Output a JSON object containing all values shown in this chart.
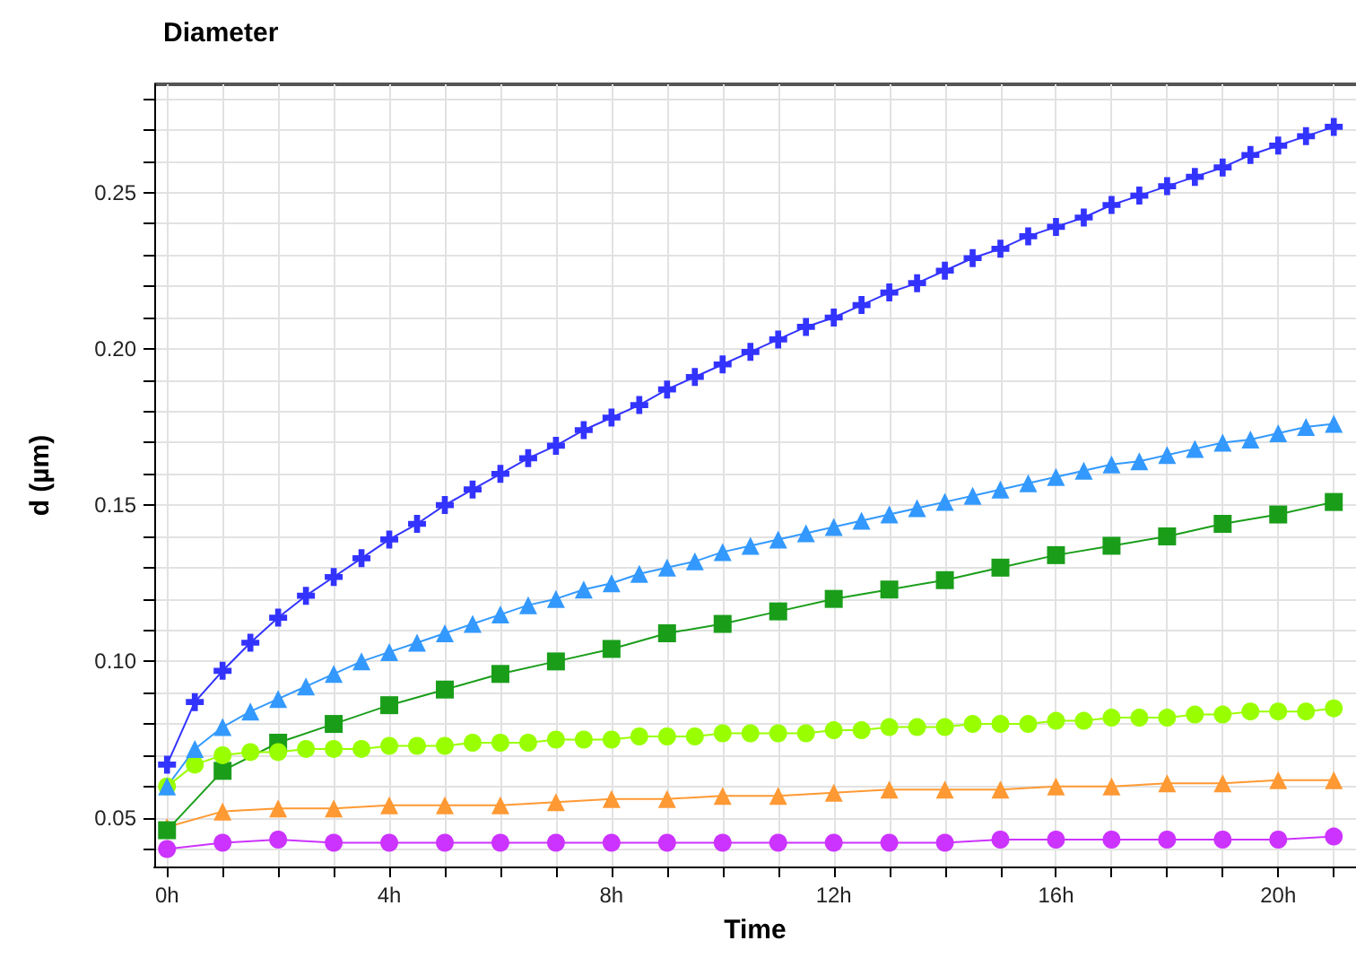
{
  "chart_data": {
    "type": "line",
    "title": "Diameter",
    "xlabel": "Time",
    "ylabel": "d (µm)",
    "xlim": [
      -0.23,
      21.4
    ],
    "ylim": [
      0.0344,
      0.2846
    ],
    "xticks": [
      {
        "value": 0,
        "label": "0h"
      },
      {
        "value": 1,
        "label": null
      },
      {
        "value": 2,
        "label": null
      },
      {
        "value": 3,
        "label": null
      },
      {
        "value": 4,
        "label": "4h"
      },
      {
        "value": 5,
        "label": null
      },
      {
        "value": 6,
        "label": null
      },
      {
        "value": 7,
        "label": null
      },
      {
        "value": 8,
        "label": "8h"
      },
      {
        "value": 9,
        "label": null
      },
      {
        "value": 10,
        "label": null
      },
      {
        "value": 11,
        "label": null
      },
      {
        "value": 12,
        "label": "12h"
      },
      {
        "value": 13,
        "label": null
      },
      {
        "value": 14,
        "label": null
      },
      {
        "value": 15,
        "label": null
      },
      {
        "value": 16,
        "label": "16h"
      },
      {
        "value": 17,
        "label": null
      },
      {
        "value": 18,
        "label": null
      },
      {
        "value": 19,
        "label": null
      },
      {
        "value": 20,
        "label": "20h"
      },
      {
        "value": 21,
        "label": null
      }
    ],
    "yticks": [
      {
        "value": 0.04,
        "label": null
      },
      {
        "value": 0.05,
        "label": "0.05"
      },
      {
        "value": 0.06,
        "label": null
      },
      {
        "value": 0.07,
        "label": null
      },
      {
        "value": 0.08,
        "label": null
      },
      {
        "value": 0.09,
        "label": null
      },
      {
        "value": 0.1,
        "label": "0.10"
      },
      {
        "value": 0.11,
        "label": null
      },
      {
        "value": 0.12,
        "label": null
      },
      {
        "value": 0.13,
        "label": null
      },
      {
        "value": 0.14,
        "label": null
      },
      {
        "value": 0.15,
        "label": "0.15"
      },
      {
        "value": 0.16,
        "label": null
      },
      {
        "value": 0.17,
        "label": null
      },
      {
        "value": 0.18,
        "label": null
      },
      {
        "value": 0.19,
        "label": null
      },
      {
        "value": 0.2,
        "label": "0.20"
      },
      {
        "value": 0.21,
        "label": null
      },
      {
        "value": 0.22,
        "label": null
      },
      {
        "value": 0.23,
        "label": null
      },
      {
        "value": 0.24,
        "label": null
      },
      {
        "value": 0.25,
        "label": "0.25"
      },
      {
        "value": 0.26,
        "label": null
      },
      {
        "value": 0.27,
        "label": null
      },
      {
        "value": 0.28,
        "label": null
      }
    ],
    "grid": true,
    "line_style": "solid",
    "series": [
      {
        "color": "#ff9933",
        "marker": "triangle",
        "x": [
          0,
          1,
          2,
          3,
          4,
          5,
          6,
          7,
          8,
          9,
          10,
          11,
          12,
          13,
          14,
          15,
          16,
          17,
          18,
          19,
          20,
          21
        ],
        "values": [
          0.047,
          0.052,
          0.053,
          0.053,
          0.054,
          0.054,
          0.054,
          0.055,
          0.056,
          0.056,
          0.057,
          0.057,
          0.058,
          0.059,
          0.059,
          0.059,
          0.06,
          0.06,
          0.061,
          0.061,
          0.062,
          0.062
        ]
      },
      {
        "color": "#cc33ff",
        "marker": "circle",
        "x": [
          0,
          1,
          2,
          3,
          4,
          5,
          6,
          7,
          8,
          9,
          10,
          11,
          12,
          13,
          14,
          15,
          16,
          17,
          18,
          19,
          20,
          21
        ],
        "values": [
          0.04,
          0.042,
          0.043,
          0.042,
          0.042,
          0.042,
          0.042,
          0.042,
          0.042,
          0.042,
          0.042,
          0.042,
          0.042,
          0.042,
          0.042,
          0.043,
          0.043,
          0.043,
          0.043,
          0.043,
          0.043,
          0.044
        ]
      },
      {
        "color": "#1a9e1a",
        "marker": "square",
        "x": [
          0,
          1,
          2,
          3,
          4,
          5,
          6,
          7,
          8,
          9,
          10,
          11,
          12,
          13,
          14,
          15,
          16,
          17,
          18,
          19,
          20,
          21
        ],
        "values": [
          0.046,
          0.065,
          0.074,
          0.08,
          0.086,
          0.091,
          0.096,
          0.1,
          0.104,
          0.109,
          0.112,
          0.116,
          0.12,
          0.123,
          0.126,
          0.13,
          0.134,
          0.137,
          0.14,
          0.144,
          0.147,
          0.151
        ]
      },
      {
        "color": "#99ff00",
        "marker": "circle",
        "x": [
          0,
          0.5,
          1,
          1.5,
          2,
          2.5,
          3,
          3.5,
          4,
          4.5,
          5,
          5.5,
          6,
          6.5,
          7,
          7.5,
          8,
          8.5,
          9,
          9.5,
          10,
          10.5,
          11,
          11.5,
          12,
          12.5,
          13,
          13.5,
          14,
          14.5,
          15,
          15.5,
          16,
          16.5,
          17,
          17.5,
          18,
          18.5,
          19,
          19.5,
          20,
          20.5,
          21
        ],
        "values": [
          0.06,
          0.067,
          0.07,
          0.071,
          0.071,
          0.072,
          0.072,
          0.072,
          0.073,
          0.073,
          0.073,
          0.074,
          0.074,
          0.074,
          0.075,
          0.075,
          0.075,
          0.076,
          0.076,
          0.076,
          0.077,
          0.077,
          0.077,
          0.077,
          0.078,
          0.078,
          0.079,
          0.079,
          0.079,
          0.08,
          0.08,
          0.08,
          0.081,
          0.081,
          0.082,
          0.082,
          0.082,
          0.083,
          0.083,
          0.084,
          0.084,
          0.084,
          0.085
        ]
      },
      {
        "color": "#3399ff",
        "marker": "triangle",
        "x": [
          0,
          0.5,
          1,
          1.5,
          2,
          2.5,
          3,
          3.5,
          4,
          4.5,
          5,
          5.5,
          6,
          6.5,
          7,
          7.5,
          8,
          8.5,
          9,
          9.5,
          10,
          10.5,
          11,
          11.5,
          12,
          12.5,
          13,
          13.5,
          14,
          14.5,
          15,
          15.5,
          16,
          16.5,
          17,
          17.5,
          18,
          18.5,
          19,
          19.5,
          20,
          20.5,
          21
        ],
        "values": [
          0.06,
          0.072,
          0.079,
          0.084,
          0.088,
          0.092,
          0.096,
          0.1,
          0.103,
          0.106,
          0.109,
          0.112,
          0.115,
          0.118,
          0.12,
          0.123,
          0.125,
          0.128,
          0.13,
          0.132,
          0.135,
          0.137,
          0.139,
          0.141,
          0.143,
          0.145,
          0.147,
          0.149,
          0.151,
          0.153,
          0.155,
          0.157,
          0.159,
          0.161,
          0.163,
          0.164,
          0.166,
          0.168,
          0.17,
          0.171,
          0.173,
          0.175,
          0.176
        ]
      },
      {
        "color": "#3333ff",
        "marker": "cross",
        "x": [
          0,
          0.5,
          1,
          1.5,
          2,
          2.5,
          3,
          3.5,
          4,
          4.5,
          5,
          5.5,
          6,
          6.5,
          7,
          7.5,
          8,
          8.5,
          9,
          9.5,
          10,
          10.5,
          11,
          11.5,
          12,
          12.5,
          13,
          13.5,
          14,
          14.5,
          15,
          15.5,
          16,
          16.5,
          17,
          17.5,
          18,
          18.5,
          19,
          19.5,
          20,
          20.5,
          21
        ],
        "values": [
          0.067,
          0.087,
          0.097,
          0.106,
          0.114,
          0.121,
          0.127,
          0.133,
          0.139,
          0.144,
          0.15,
          0.155,
          0.16,
          0.165,
          0.169,
          0.174,
          0.178,
          0.182,
          0.187,
          0.191,
          0.195,
          0.199,
          0.203,
          0.207,
          0.21,
          0.214,
          0.218,
          0.221,
          0.225,
          0.229,
          0.232,
          0.236,
          0.239,
          0.242,
          0.246,
          0.249,
          0.252,
          0.255,
          0.258,
          0.262,
          0.265,
          0.268,
          0.271
        ]
      }
    ]
  }
}
